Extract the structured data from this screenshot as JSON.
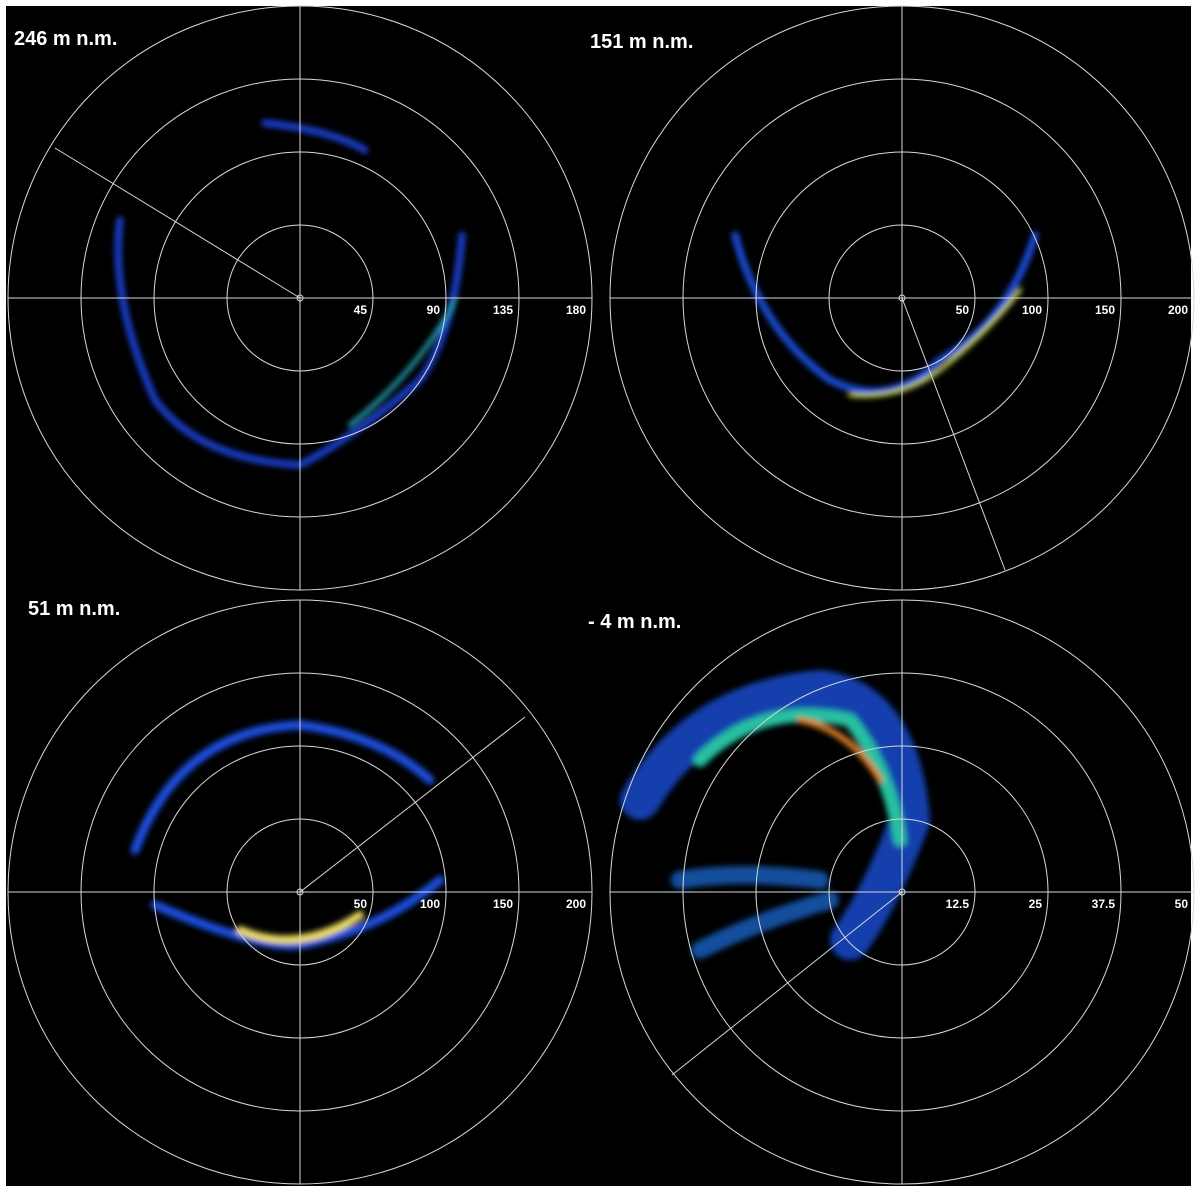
{
  "panels": [
    {
      "title": "246 m n.m.",
      "rlim": [
        0,
        180
      ],
      "rticks": [
        45,
        90,
        135,
        180
      ]
    },
    {
      "title": "151  m n.m.",
      "rlim": [
        0,
        200
      ],
      "rticks": [
        50,
        100,
        150,
        200
      ]
    },
    {
      "title": "51  m n.m.",
      "rlim": [
        0,
        200
      ],
      "rticks": [
        50,
        100,
        150,
        200
      ]
    },
    {
      "title": "- 4 m n.m.",
      "rlim": [
        0,
        50
      ],
      "rticks": [
        12.5,
        25,
        37.5,
        50
      ]
    }
  ]
}
